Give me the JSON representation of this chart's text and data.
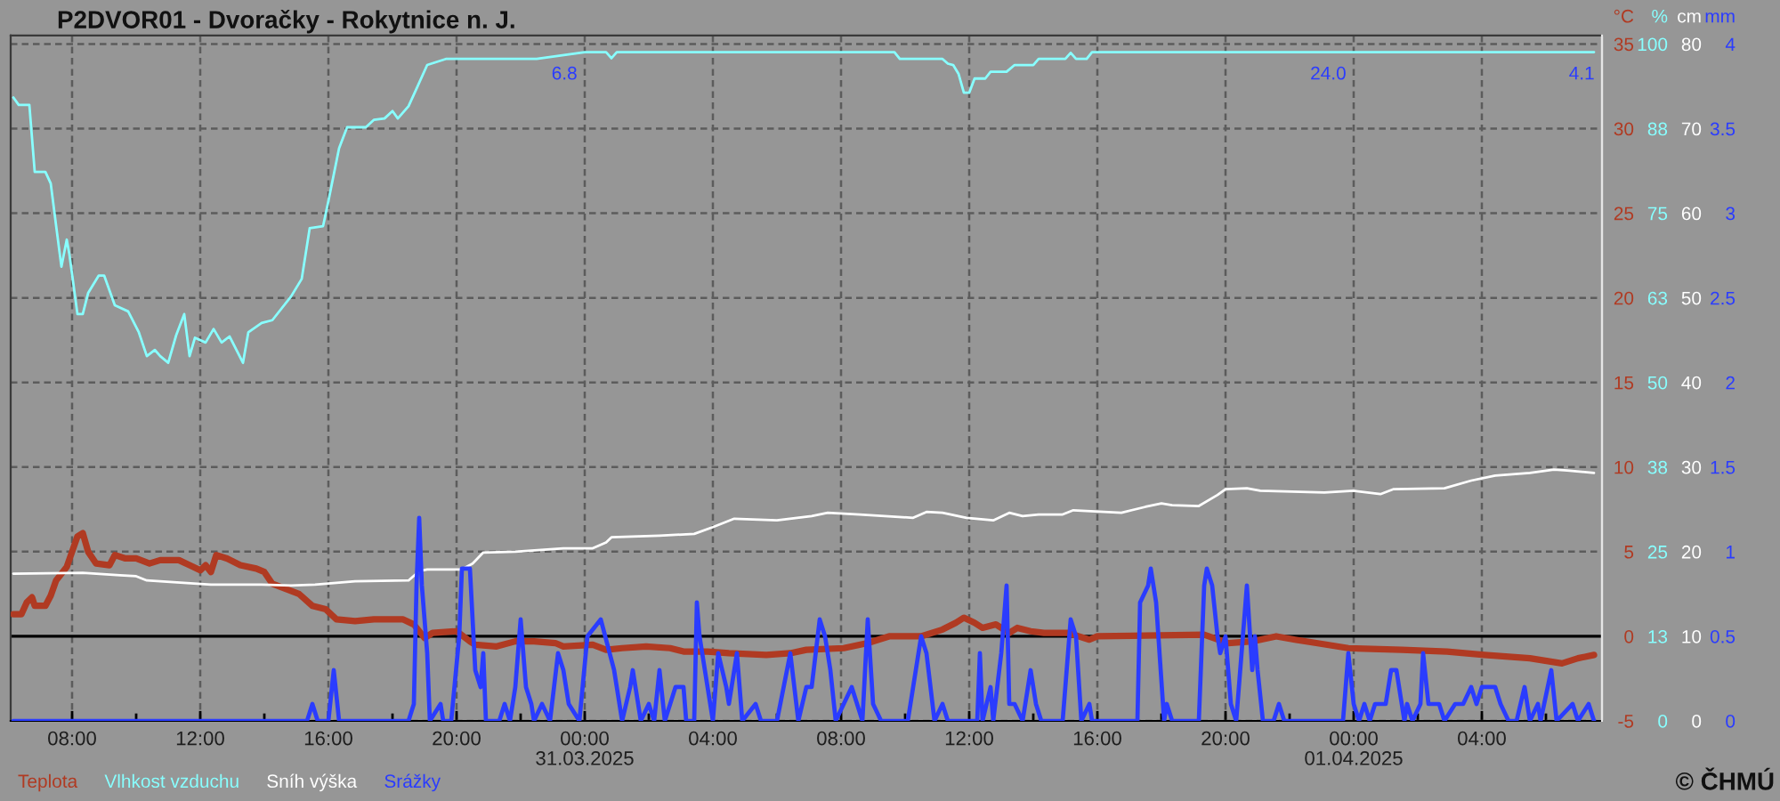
{
  "chart_data": [
    {
      "type": "line",
      "title": "P2DVOR01 - Dvoračky - Rokytnice n. J.",
      "ylabel": "°C",
      "y2label": "%",
      "y3label": "cm",
      "xlim": [
        "2025-03-30T06:05",
        "2025-04-01T07:45"
      ],
      "xticks": [
        {
          "value": "2025-03-30T08:00",
          "label": "08:00"
        },
        {
          "value": "2025-03-30T10:00",
          "label": null
        },
        {
          "value": "2025-03-30T12:00",
          "label": "12:00"
        },
        {
          "value": "2025-03-30T14:00",
          "label": null
        },
        {
          "value": "2025-03-30T16:00",
          "label": "16:00"
        },
        {
          "value": "2025-03-30T18:00",
          "label": null
        },
        {
          "value": "2025-03-30T20:00",
          "label": "20:00"
        },
        {
          "value": "2025-03-30T22:00",
          "label": null
        },
        {
          "value": "2025-03-31T00:00",
          "label": "00:00\n31.03.2025"
        },
        {
          "value": "2025-03-31T02:00",
          "label": null
        },
        {
          "value": "2025-03-31T04:00",
          "label": "04:00"
        },
        {
          "value": "2025-03-31T06:00",
          "label": null
        },
        {
          "value": "2025-03-31T08:00",
          "label": "08:00"
        },
        {
          "value": "2025-03-31T10:00",
          "label": null
        },
        {
          "value": "2025-03-31T12:00",
          "label": "12:00"
        },
        {
          "value": "2025-03-31T14:00",
          "label": null
        },
        {
          "value": "2025-03-31T16:00",
          "label": "16:00"
        },
        {
          "value": "2025-03-31T18:00",
          "label": null
        },
        {
          "value": "2025-03-31T20:00",
          "label": "20:00"
        },
        {
          "value": "2025-03-31T22:00",
          "label": null
        },
        {
          "value": "2025-04-01T00:00",
          "label": "00:00\n01.04.2025"
        },
        {
          "value": "2025-04-01T02:00",
          "label": null
        },
        {
          "value": "2025-04-01T04:00",
          "label": "04:00"
        },
        {
          "value": "2025-04-01T06:00",
          "label": null
        }
      ],
      "ylim": [
        -5,
        35.5
      ],
      "yticks": [
        -5,
        0,
        5,
        10,
        15,
        20,
        25,
        30,
        35
      ],
      "y2lim": [
        0,
        101.25
      ],
      "y2ticks": [
        0,
        {
          "value": 12.5,
          "label": "13"
        },
        25,
        {
          "value": 37.5,
          "label": "38"
        },
        50,
        {
          "value": 62.5,
          "label": "63"
        },
        75,
        {
          "value": 87.5,
          "label": "88"
        },
        100
      ],
      "y3lim": [
        0,
        81
      ],
      "y3ticks": [
        0,
        10,
        20,
        30,
        40,
        50,
        60,
        70,
        80
      ],
      "grid": true,
      "legend": "bottom left",
      "ref_lines": [
        {
          "axis": "y",
          "value": 0,
          "color": "#000000"
        }
      ],
      "annotations": [
        "© ČHMÚ"
      ],
      "series": [
        {
          "name": "Teplota",
          "color": "#b03a22",
          "x": [
            "2025-03-30T06:10",
            "2025-03-30T06:25",
            "2025-03-30T06:35",
            "2025-03-30T06:45",
            "2025-03-30T06:50",
            "2025-03-30T07:10",
            "2025-03-30T07:20",
            "2025-03-30T07:30",
            "2025-03-30T07:50",
            "2025-03-30T08:00",
            "2025-03-30T08:10",
            "2025-03-30T08:20",
            "2025-03-30T08:30",
            "2025-03-30T08:45",
            "2025-03-30T09:10",
            "2025-03-30T09:20",
            "2025-03-30T09:40",
            "2025-03-30T10:00",
            "2025-03-30T10:25",
            "2025-03-30T10:45",
            "2025-03-30T11:20",
            "2025-03-30T11:40",
            "2025-03-30T12:00",
            "2025-03-30T12:10",
            "2025-03-30T12:20",
            "2025-03-30T12:30",
            "2025-03-30T12:50",
            "2025-03-30T13:15",
            "2025-03-30T13:45",
            "2025-03-30T14:00",
            "2025-03-30T14:15",
            "2025-03-30T14:40",
            "2025-03-30T15:05",
            "2025-03-30T15:30",
            "2025-03-30T15:55",
            "2025-03-30T16:15",
            "2025-03-30T16:50",
            "2025-03-30T17:25",
            "2025-03-30T18:20",
            "2025-03-30T18:40",
            "2025-03-30T19:00",
            "2025-03-30T19:15",
            "2025-03-30T20:00",
            "2025-03-30T20:25",
            "2025-03-30T20:35",
            "2025-03-30T21:15",
            "2025-03-30T21:50",
            "2025-03-30T22:25",
            "2025-03-30T23:05",
            "2025-03-30T23:20",
            "2025-03-31T00:15",
            "2025-03-31T00:40",
            "2025-03-31T01:10",
            "2025-03-31T01:55",
            "2025-03-31T02:40",
            "2025-03-31T03:05",
            "2025-03-31T03:50",
            "2025-03-31T04:30",
            "2025-03-31T05:40",
            "2025-03-31T06:25",
            "2025-03-31T06:55",
            "2025-03-31T08:05",
            "2025-03-31T08:50",
            "2025-03-31T09:30",
            "2025-03-31T10:30",
            "2025-03-31T11:10",
            "2025-03-31T11:35",
            "2025-03-31T11:50",
            "2025-03-31T12:10",
            "2025-03-31T12:25",
            "2025-03-31T12:50",
            "2025-03-31T13:15",
            "2025-03-31T13:30",
            "2025-03-31T13:55",
            "2025-03-31T14:20",
            "2025-03-31T15:05",
            "2025-03-31T15:45",
            "2025-03-31T16:00",
            "2025-03-31T19:20",
            "2025-03-31T20:05",
            "2025-03-31T20:50",
            "2025-03-31T21:35",
            "2025-03-31T22:10",
            "2025-03-31T22:50",
            "2025-03-31T23:50",
            "2025-04-01T01:30",
            "2025-04-01T02:55",
            "2025-04-01T04:05",
            "2025-04-01T05:30",
            "2025-04-01T06:30",
            "2025-04-01T07:00",
            "2025-04-01T07:30"
          ],
          "values": [
            1.3,
            1.3,
            2.0,
            2.3,
            1.8,
            1.8,
            2.4,
            3.3,
            4.1,
            5.0,
            5.9,
            6.1,
            5.0,
            4.3,
            4.2,
            4.8,
            4.6,
            4.6,
            4.3,
            4.5,
            4.5,
            4.2,
            3.9,
            4.2,
            3.8,
            4.8,
            4.6,
            4.2,
            4.0,
            3.8,
            3.1,
            2.8,
            2.5,
            1.8,
            1.6,
            1.0,
            0.9,
            1.0,
            1.0,
            0.7,
            -0.1,
            0.2,
            0.3,
            -0.3,
            -0.5,
            -0.6,
            -0.3,
            -0.3,
            -0.4,
            -0.6,
            -0.5,
            -0.8,
            -0.7,
            -0.6,
            -0.7,
            -0.9,
            -0.9,
            -1.0,
            -1.1,
            -1.0,
            -0.8,
            -0.7,
            -0.4,
            0.0,
            0.0,
            0.4,
            0.8,
            1.1,
            0.8,
            0.5,
            0.7,
            0.2,
            0.5,
            0.3,
            0.2,
            0.2,
            -0.2,
            0.0,
            0.1,
            -0.4,
            -0.3,
            0.0,
            -0.2,
            -0.4,
            -0.7,
            -0.8,
            -0.9,
            -1.1,
            -1.3,
            -1.6,
            -1.3,
            -1.1
          ]
        },
        {
          "name": "Vlhkost vzduchu",
          "color": "#88ffff",
          "axis": "y2",
          "x": [
            "2025-03-30T06:10",
            "2025-03-30T06:20",
            "2025-03-30T06:40",
            "2025-03-30T06:50",
            "2025-03-30T07:10",
            "2025-03-30T07:20",
            "2025-03-30T07:30",
            "2025-03-30T07:40",
            "2025-03-30T07:50",
            "2025-03-30T07:55",
            "2025-03-30T08:10",
            "2025-03-30T08:20",
            "2025-03-30T08:30",
            "2025-03-30T08:50",
            "2025-03-30T09:00",
            "2025-03-30T09:20",
            "2025-03-30T09:45",
            "2025-03-30T10:05",
            "2025-03-30T10:20",
            "2025-03-30T10:35",
            "2025-03-30T10:45",
            "2025-03-30T11:00",
            "2025-03-30T11:15",
            "2025-03-30T11:30",
            "2025-03-30T11:40",
            "2025-03-30T11:50",
            "2025-03-30T12:10",
            "2025-03-30T12:25",
            "2025-03-30T12:40",
            "2025-03-30T12:55",
            "2025-03-30T13:20",
            "2025-03-30T13:30",
            "2025-03-30T13:55",
            "2025-03-30T14:15",
            "2025-03-30T14:50",
            "2025-03-30T15:10",
            "2025-03-30T15:25",
            "2025-03-30T15:50",
            "2025-03-30T16:00",
            "2025-03-30T16:20",
            "2025-03-30T16:35",
            "2025-03-30T17:10",
            "2025-03-30T17:25",
            "2025-03-30T17:45",
            "2025-03-30T18:00",
            "2025-03-30T18:10",
            "2025-03-30T18:30",
            "2025-03-30T18:45",
            "2025-03-30T19:05",
            "2025-03-30T19:40",
            "2025-03-30T22:30",
            "2025-03-31T00:00",
            "2025-03-31T00:40",
            "2025-03-31T00:50",
            "2025-03-31T01:00",
            "2025-03-31T09:40",
            "2025-03-31T09:50",
            "2025-03-31T11:10",
            "2025-03-31T11:20",
            "2025-03-31T11:30",
            "2025-03-31T11:40",
            "2025-03-31T11:50",
            "2025-03-31T12:00",
            "2025-03-31T12:10",
            "2025-03-31T12:30",
            "2025-03-31T12:40",
            "2025-03-31T13:10",
            "2025-03-31T13:25",
            "2025-03-31T14:00",
            "2025-03-31T14:10",
            "2025-03-31T15:00",
            "2025-03-31T15:10",
            "2025-03-31T15:20",
            "2025-03-31T15:40",
            "2025-03-31T15:50",
            "2025-04-01T07:30"
          ],
          "values": [
            92.1,
            91.0,
            91.0,
            81.1,
            81.1,
            79.4,
            73.2,
            67.1,
            71.1,
            68.9,
            60.1,
            60.1,
            63.2,
            65.8,
            65.8,
            61.4,
            60.5,
            57.4,
            53.9,
            54.8,
            53.9,
            52.9,
            57.0,
            60.1,
            53.9,
            56.6,
            55.9,
            57.9,
            55.9,
            56.8,
            52.9,
            57.4,
            58.8,
            59.2,
            62.7,
            65.3,
            72.8,
            73.1,
            76.8,
            84.6,
            87.7,
            87.7,
            88.8,
            89.0,
            90.1,
            89.0,
            90.8,
            93.4,
            96.9,
            97.8,
            97.8,
            98.8,
            98.8,
            97.9,
            98.8,
            98.8,
            97.8,
            97.8,
            97.1,
            96.9,
            95.6,
            92.8,
            92.8,
            94.9,
            94.9,
            95.9,
            95.9,
            96.9,
            96.9,
            97.8,
            97.8,
            98.7,
            97.8,
            97.8,
            98.8,
            98.8
          ]
        },
        {
          "name": "Sníh výška",
          "color": "#ffffff",
          "axis": "y3",
          "x": [
            "2025-03-30T06:10",
            "2025-03-30T08:20",
            "2025-03-30T09:30",
            "2025-03-30T10:00",
            "2025-03-30T10:20",
            "2025-03-30T11:10",
            "2025-03-30T12:20",
            "2025-03-30T13:55",
            "2025-03-30T14:50",
            "2025-03-30T15:35",
            "2025-03-30T16:50",
            "2025-03-30T18:30",
            "2025-03-30T18:50",
            "2025-03-30T19:05",
            "2025-03-30T20:10",
            "2025-03-30T20:30",
            "2025-03-30T20:50",
            "2025-03-30T21:50",
            "2025-03-30T23:20",
            "2025-03-31T00:15",
            "2025-03-31T00:40",
            "2025-03-31T00:50",
            "2025-03-31T02:20",
            "2025-03-31T03:25",
            "2025-03-31T04:00",
            "2025-03-31T04:40",
            "2025-03-31T06:00",
            "2025-03-31T07:05",
            "2025-03-31T07:35",
            "2025-03-31T08:35",
            "2025-03-31T10:15",
            "2025-03-31T10:40",
            "2025-03-31T11:10",
            "2025-03-31T11:55",
            "2025-03-31T12:45",
            "2025-03-31T13:15",
            "2025-03-31T13:40",
            "2025-03-31T14:10",
            "2025-03-31T14:55",
            "2025-03-31T15:15",
            "2025-03-31T16:45",
            "2025-03-31T17:30",
            "2025-03-31T18:00",
            "2025-03-31T18:20",
            "2025-03-31T19:10",
            "2025-03-31T19:45",
            "2025-03-31T20:00",
            "2025-03-31T20:40",
            "2025-03-31T21:05",
            "2025-03-31T23:05",
            "2025-04-01T00:00",
            "2025-04-01T00:50",
            "2025-04-01T01:15",
            "2025-04-01T02:50",
            "2025-04-01T03:40",
            "2025-04-01T04:25",
            "2025-04-01T05:30",
            "2025-04-01T06:15",
            "2025-04-01T06:40",
            "2025-04-01T07:30"
          ],
          "values": [
            17.4,
            17.5,
            17.2,
            17.1,
            16.6,
            16.4,
            16.1,
            16.1,
            16.0,
            16.1,
            16.5,
            16.6,
            17.7,
            17.9,
            17.9,
            18.6,
            19.9,
            20.0,
            20.4,
            20.4,
            21.1,
            21.7,
            21.9,
            22.1,
            22.9,
            23.9,
            23.7,
            24.2,
            24.6,
            24.4,
            24.0,
            24.7,
            24.6,
            24.0,
            23.7,
            24.6,
            24.2,
            24.4,
            24.4,
            24.9,
            24.6,
            25.3,
            25.7,
            25.5,
            25.4,
            26.7,
            27.4,
            27.5,
            27.2,
            27.0,
            27.2,
            26.8,
            27.4,
            27.5,
            28.4,
            29.0,
            29.3,
            29.7,
            29.6,
            29.3
          ]
        }
      ]
    },
    {
      "type": "line",
      "ylabel": "mm",
      "tick_labels": "y",
      "xlim": [
        "2025-03-30T06:05",
        "2025-04-01T07:45"
      ],
      "ylim": [
        0,
        4.05
      ],
      "yticks": [
        0,
        0.5,
        1,
        1.5,
        2,
        2.5,
        3,
        3.5,
        4
      ],
      "legend": "bottom left",
      "annotations": [
        "6.8",
        "24.0",
        "4.1"
      ],
      "series": [
        {
          "name": "Srážky",
          "color": "#2a3cff",
          "x": [
            "2025-03-30T06:10",
            "2025-03-30T15:20",
            "2025-03-30T15:30",
            "2025-03-30T15:40",
            "2025-03-30T16:00",
            "2025-03-30T16:10",
            "2025-03-30T16:20",
            "2025-03-30T18:30",
            "2025-03-30T18:40",
            "2025-03-30T18:45",
            "2025-03-30T18:50",
            "2025-03-30T18:55",
            "2025-03-30T19:05",
            "2025-03-30T19:10",
            "2025-03-30T19:30",
            "2025-03-30T19:35",
            "2025-03-30T19:50",
            "2025-03-30T20:05",
            "2025-03-30T20:10",
            "2025-03-30T20:20",
            "2025-03-30T20:25",
            "2025-03-30T20:35",
            "2025-03-30T20:45",
            "2025-03-30T20:50",
            "2025-03-30T20:55",
            "2025-03-30T21:20",
            "2025-03-30T21:30",
            "2025-03-30T21:40",
            "2025-03-30T21:50",
            "2025-03-30T22:00",
            "2025-03-30T22:10",
            "2025-03-30T22:20",
            "2025-03-30T22:25",
            "2025-03-30T22:40",
            "2025-03-30T22:55",
            "2025-03-30T23:10",
            "2025-03-30T23:20",
            "2025-03-30T23:30",
            "2025-03-30T23:50",
            "2025-03-31T00:05",
            "2025-03-31T00:30",
            "2025-03-31T00:55",
            "2025-03-31T01:10",
            "2025-03-31T01:25",
            "2025-03-31T01:30",
            "2025-03-31T01:45",
            "2025-03-31T02:00",
            "2025-03-31T02:10",
            "2025-03-31T02:20",
            "2025-03-31T02:30",
            "2025-03-31T02:50",
            "2025-03-31T03:05",
            "2025-03-31T03:10",
            "2025-03-31T03:25",
            "2025-03-31T03:30",
            "2025-03-31T03:35",
            "2025-03-31T04:00",
            "2025-03-31T04:10",
            "2025-03-31T04:25",
            "2025-03-31T04:30",
            "2025-03-31T04:45",
            "2025-03-31T04:55",
            "2025-03-31T05:20",
            "2025-03-31T05:30",
            "2025-03-31T06:00",
            "2025-03-31T06:25",
            "2025-03-31T06:40",
            "2025-03-31T06:55",
            "2025-03-31T07:05",
            "2025-03-31T07:20",
            "2025-03-31T07:30",
            "2025-03-31T07:40",
            "2025-03-31T07:50",
            "2025-03-31T08:05",
            "2025-03-31T08:20",
            "2025-03-31T08:40",
            "2025-03-31T08:50",
            "2025-03-31T09:00",
            "2025-03-31T09:15",
            "2025-03-31T10:05",
            "2025-03-31T10:30",
            "2025-03-31T10:40",
            "2025-03-31T10:55",
            "2025-03-31T11:10",
            "2025-03-31T11:20",
            "2025-03-31T12:15",
            "2025-03-31T12:20",
            "2025-03-31T12:25",
            "2025-03-31T12:40",
            "2025-03-31T12:45",
            "2025-03-31T13:00",
            "2025-03-31T13:10",
            "2025-03-31T13:15",
            "2025-03-31T13:25",
            "2025-03-31T13:40",
            "2025-03-31T13:55",
            "2025-03-31T14:05",
            "2025-03-31T14:15",
            "2025-03-31T14:55",
            "2025-03-31T15:10",
            "2025-03-31T15:20",
            "2025-03-31T15:30",
            "2025-03-31T15:45",
            "2025-03-31T15:50",
            "2025-03-31T17:15",
            "2025-03-31T17:20",
            "2025-03-31T17:35",
            "2025-03-31T17:40",
            "2025-03-31T17:50",
            "2025-03-31T18:05",
            "2025-03-31T18:10",
            "2025-03-31T18:20",
            "2025-03-31T19:10",
            "2025-03-31T19:20",
            "2025-03-31T19:25",
            "2025-03-31T19:35",
            "2025-03-31T19:45",
            "2025-03-31T19:50",
            "2025-03-31T20:00",
            "2025-03-31T20:10",
            "2025-03-31T20:20",
            "2025-03-31T20:30",
            "2025-03-31T20:35",
            "2025-03-31T20:40",
            "2025-03-31T20:50",
            "2025-03-31T20:55",
            "2025-03-31T21:00",
            "2025-03-31T21:10",
            "2025-03-31T21:30",
            "2025-03-31T21:40",
            "2025-03-31T21:50",
            "2025-03-31T23:40",
            "2025-03-31T23:50",
            "2025-04-01T00:00",
            "2025-04-01T00:10",
            "2025-04-01T00:20",
            "2025-04-01T00:30",
            "2025-04-01T00:40",
            "2025-04-01T01:00",
            "2025-04-01T01:10",
            "2025-04-01T01:20",
            "2025-04-01T01:35",
            "2025-04-01T01:40",
            "2025-04-01T01:50",
            "2025-04-01T02:05",
            "2025-04-01T02:10",
            "2025-04-01T02:20",
            "2025-04-01T02:40",
            "2025-04-01T02:50",
            "2025-04-01T03:10",
            "2025-04-01T03:25",
            "2025-04-01T03:40",
            "2025-04-01T03:50",
            "2025-04-01T04:00",
            "2025-04-01T04:25",
            "2025-04-01T04:35",
            "2025-04-01T04:50",
            "2025-04-01T05:05",
            "2025-04-01T05:20",
            "2025-04-01T05:30",
            "2025-04-01T05:45",
            "2025-04-01T05:50",
            "2025-04-01T06:10",
            "2025-04-01T06:20",
            "2025-04-01T06:50",
            "2025-04-01T07:00",
            "2025-04-01T07:20",
            "2025-04-01T07:30"
          ],
          "values": [
            0,
            0,
            0.1,
            0,
            0,
            0.3,
            0,
            0,
            0.1,
            0.8,
            1.2,
            0.8,
            0.4,
            0,
            0.1,
            0,
            0,
            0.5,
            0.9,
            0.9,
            0.9,
            0.3,
            0.2,
            0.4,
            0,
            0,
            0.1,
            0,
            0.2,
            0.6,
            0.2,
            0.1,
            0,
            0.1,
            0,
            0.4,
            0.3,
            0.1,
            0,
            0.5,
            0.6,
            0.3,
            0,
            0.2,
            0.3,
            0,
            0.1,
            0,
            0.3,
            0,
            0.2,
            0.2,
            0,
            0,
            0.7,
            0.5,
            0,
            0.4,
            0.2,
            0.1,
            0.4,
            0,
            0.1,
            0,
            0,
            0.4,
            0,
            0.2,
            0.2,
            0.6,
            0.5,
            0.3,
            0,
            0.1,
            0.2,
            0,
            0.6,
            0.1,
            0,
            0,
            0.5,
            0.4,
            0,
            0.1,
            0,
            0,
            0.4,
            0,
            0.2,
            0,
            0.4,
            0.8,
            0.1,
            0.1,
            0,
            0.3,
            0.1,
            0,
            0,
            0.6,
            0.5,
            0,
            0.1,
            0,
            0,
            0.7,
            0.8,
            0.9,
            0.7,
            0,
            0.1,
            0,
            0,
            0.8,
            0.9,
            0.8,
            0.5,
            0.4,
            0.5,
            0.1,
            0,
            0.4,
            0.6,
            0.8,
            0.3,
            0.5,
            0.3,
            0,
            0,
            0.1,
            0,
            0,
            0.4,
            0.1,
            0,
            0.1,
            0,
            0.1,
            0.1,
            0.3,
            0.3,
            0,
            0.1,
            0,
            0.1,
            0.4,
            0.1,
            0.1,
            0,
            0.1,
            0.1,
            0.2,
            0.1,
            0.2,
            0.2,
            0.1,
            0,
            0,
            0.2,
            0,
            0.1,
            0,
            0.3,
            0,
            0.1,
            0,
            0.1,
            0
          ]
        }
      ]
    }
  ]
}
